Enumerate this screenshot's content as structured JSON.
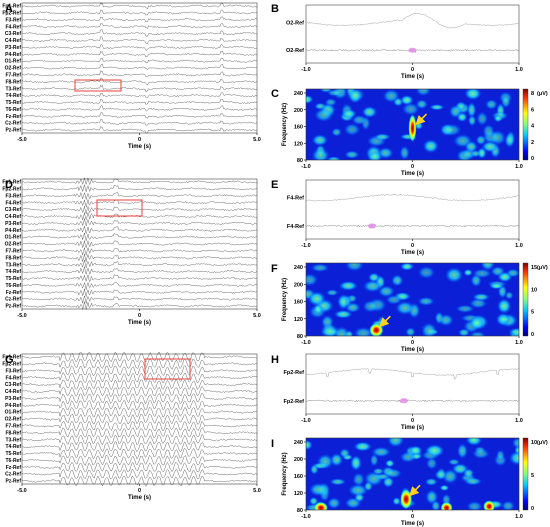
{
  "channels": [
    "Fp1-Ref",
    "Fp2-Ref",
    "F3-Ref",
    "F4-Ref",
    "C3-Ref",
    "C4-Ref",
    "P3-Ref",
    "P4-Ref",
    "O1-Ref",
    "O2-Ref",
    "F7-Ref",
    "F8-Ref",
    "T3-Ref",
    "T4-Ref",
    "T5-Ref",
    "T6-Ref",
    "Fz-Ref",
    "Cz-Ref",
    "Pz-Ref"
  ],
  "eeg_axis": {
    "ticks": [
      "-5.0",
      "0",
      "5.0"
    ],
    "label": "Time (s)"
  },
  "zoom_axis": {
    "ticks": [
      "-1.0",
      "0",
      "1.0"
    ],
    "label": "Time (s)"
  },
  "tf_axis": {
    "ylabel": "Frequency (Hz)",
    "yticks": [
      "240",
      "200",
      "160",
      "120",
      "80"
    ],
    "xticks": [
      "-1.0",
      "0",
      "1.0"
    ],
    "xlabel": "Time (s)"
  },
  "rows": [
    {
      "eeg_label": "A",
      "zoom_label": "B",
      "tf_label": "C",
      "zoom_channel": "O2-Ref",
      "colorbar_ticks": [
        "8",
        "6",
        "4",
        "2",
        "0"
      ],
      "colorbar_unit": "(μV)"
    },
    {
      "eeg_label": "D",
      "zoom_label": "E",
      "tf_label": "F",
      "zoom_channel": "F4-Ref",
      "colorbar_ticks": [
        "15",
        "10",
        "5",
        "0"
      ],
      "colorbar_unit": "(μV)"
    },
    {
      "eeg_label": "G",
      "zoom_label": "H",
      "tf_label": "I",
      "zoom_channel": "Fp2-Ref",
      "colorbar_ticks": [
        "10",
        "5",
        "0"
      ],
      "colorbar_unit": "(μV)"
    }
  ],
  "colors": {
    "box": "#e8403a",
    "arrow": "#ffd21f",
    "event": "#e38ce6"
  }
}
